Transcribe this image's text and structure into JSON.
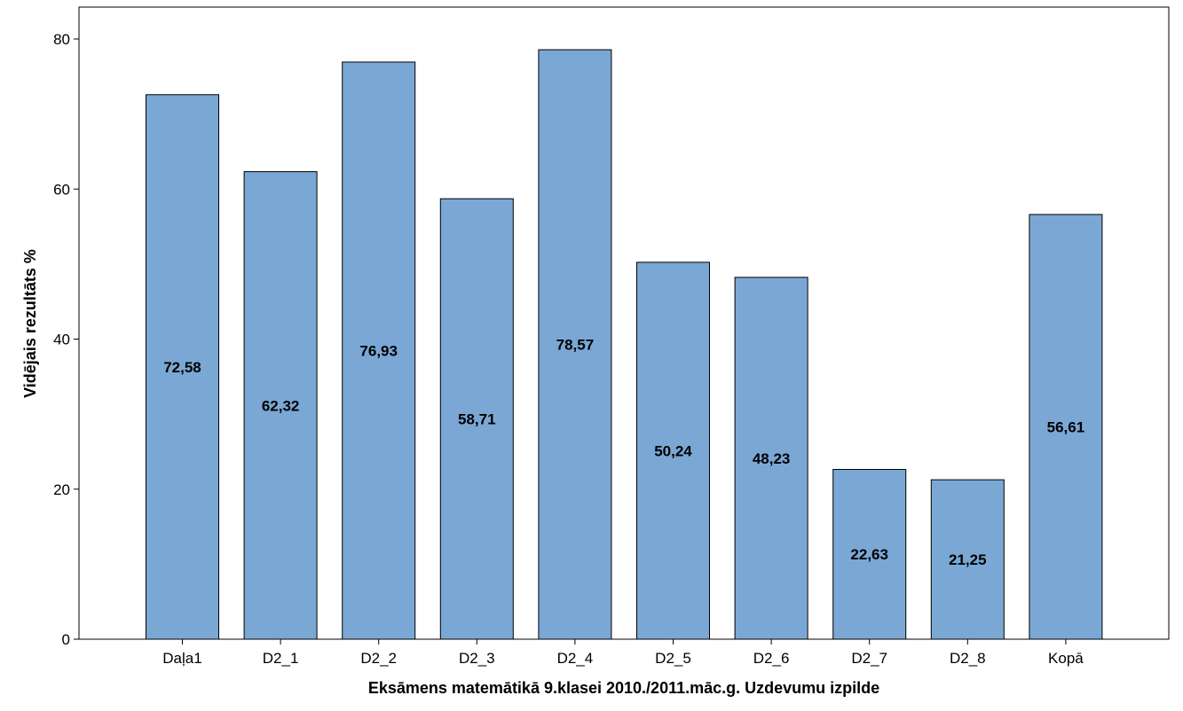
{
  "chart_data": {
    "type": "bar",
    "categories": [
      "Daļa1",
      "D2_1",
      "D2_2",
      "D2_3",
      "D2_4",
      "D2_5",
      "D2_6",
      "D2_7",
      "D2_8",
      "Kopā"
    ],
    "values": [
      72.58,
      62.32,
      76.93,
      58.71,
      78.57,
      50.24,
      48.23,
      22.63,
      21.25,
      56.61
    ],
    "data_labels": [
      "72,58",
      "62,32",
      "76,93",
      "58,71",
      "78,57",
      "50,24",
      "48,23",
      "22,63",
      "21,25",
      "56,61"
    ],
    "xlabel": "Eksāmens matemātikā 9.klasei 2010./2011.māc.g. Uzdevumu izpilde",
    "ylabel": "Vidējais rezultāts %",
    "ylim": [
      0,
      80
    ],
    "yticks": [
      0,
      20,
      40,
      60,
      80
    ],
    "grid": false,
    "legend": "none",
    "bar_color": "#7BA7D5",
    "bar_edge_color": "#000000"
  }
}
